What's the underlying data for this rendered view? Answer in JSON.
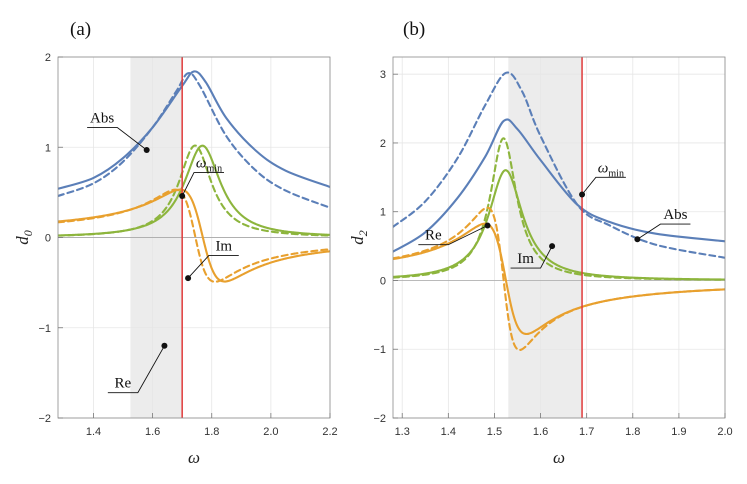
{
  "colors": {
    "abs": "#5b7fb8",
    "im": "#8db53d",
    "re": "#e8a02e",
    "marker": "#e03b3b",
    "shade": "#ececec"
  },
  "chart_data": [
    {
      "type": "line",
      "panel_label": "(a)",
      "xlabel": "ω",
      "ylabel_main": "d",
      "ylabel_sub": "0",
      "xlim": [
        1.28,
        2.2
      ],
      "ylim": [
        -2.0,
        2.0
      ],
      "xticks": [
        1.4,
        1.6,
        1.8,
        2.0,
        2.2
      ],
      "xtick_labels": [
        "1.4",
        "1.6",
        "1.8",
        "2.0",
        "2.2"
      ],
      "yticks": [
        -2,
        -1,
        0,
        1,
        2
      ],
      "ytick_labels": [
        "−2",
        "−1",
        "0",
        "1",
        "2"
      ],
      "shaded_region": [
        1.525,
        1.7
      ],
      "marker_line_x": 1.7,
      "resonance": {
        "w0": 1.77,
        "gamma": 0.15,
        "A": 0.27
      },
      "dashed_resonance": {
        "w0": 1.745,
        "gamma": 0.135,
        "A": 0.24
      },
      "series": [
        {
          "name": "Abs",
          "style": "solid",
          "color": "abs",
          "points": [
            [
              1.28,
              0.54
            ],
            [
              1.4,
              0.66
            ],
            [
              1.5,
              0.88
            ],
            [
              1.6,
              1.22
            ],
            [
              1.7,
              1.68
            ],
            [
              1.74,
              1.84
            ],
            [
              1.78,
              1.72
            ],
            [
              1.85,
              1.32
            ],
            [
              1.95,
              0.96
            ],
            [
              2.05,
              0.74
            ],
            [
              2.2,
              0.56
            ]
          ]
        },
        {
          "name": "Abs",
          "style": "dashed",
          "color": "abs",
          "points": [
            [
              1.28,
              0.46
            ],
            [
              1.4,
              0.6
            ],
            [
              1.5,
              0.84
            ],
            [
              1.6,
              1.22
            ],
            [
              1.68,
              1.62
            ],
            [
              1.72,
              1.82
            ],
            [
              1.76,
              1.68
            ],
            [
              1.85,
              1.12
            ],
            [
              1.95,
              0.74
            ],
            [
              2.05,
              0.52
            ],
            [
              2.2,
              0.33
            ]
          ]
        },
        {
          "name": "Im",
          "style": "solid",
          "color": "im"
        },
        {
          "name": "Im",
          "style": "dashed",
          "color": "im"
        },
        {
          "name": "Re",
          "style": "solid",
          "color": "re"
        },
        {
          "name": "Re",
          "style": "dashed",
          "color": "re"
        }
      ],
      "annotations": [
        {
          "text": "Abs",
          "point": [
            1.58,
            0.97
          ],
          "label": [
            1.43,
            1.22
          ],
          "elbow": [
            1.48,
            1.22
          ],
          "pos": "left"
        },
        {
          "text": "ω",
          "sub": "min",
          "point": [
            1.7,
            0.46
          ],
          "label": [
            1.74,
            0.86
          ],
          "elbow": [
            1.74,
            0.72
          ],
          "pos": "right"
        },
        {
          "text": "Im",
          "point": [
            1.72,
            -0.45
          ],
          "label": [
            1.79,
            -0.05
          ],
          "elbow": [
            1.79,
            -0.2
          ],
          "pos": "right"
        },
        {
          "text": "Re",
          "point": [
            1.64,
            -1.2
          ],
          "label": [
            1.45,
            -1.72
          ],
          "elbow": [
            1.55,
            -1.72
          ],
          "pos": "left"
        }
      ]
    },
    {
      "type": "line",
      "panel_label": "(b)",
      "xlabel": "ω",
      "ylabel_main": "d",
      "ylabel_sub": "2",
      "xlim": [
        1.28,
        2.0
      ],
      "ylim": [
        -2.0,
        3.25
      ],
      "xticks": [
        1.3,
        1.4,
        1.5,
        1.6,
        1.7,
        1.8,
        1.9,
        2.0
      ],
      "xtick_labels": [
        "1.3",
        "1.4",
        "1.5",
        "1.6",
        "1.7",
        "1.8",
        "1.9",
        "2.0"
      ],
      "yticks": [
        -2,
        -1,
        0,
        1,
        2,
        3
      ],
      "ytick_labels": [
        "−2",
        "−1",
        "0",
        "1",
        "2",
        "3"
      ],
      "shaded_region": [
        1.53,
        1.69
      ],
      "marker_line_x": 1.69,
      "resonance": {
        "w0": 1.525,
        "gamma": 0.09,
        "A": 0.22
      },
      "dashed_resonance": {
        "w0": 1.52,
        "gamma": 0.07,
        "A": 0.22
      },
      "series": [
        {
          "name": "Abs",
          "style": "solid",
          "color": "abs",
          "points": [
            [
              1.28,
              0.42
            ],
            [
              1.35,
              0.7
            ],
            [
              1.42,
              1.2
            ],
            [
              1.48,
              1.8
            ],
            [
              1.52,
              2.32
            ],
            [
              1.55,
              2.2
            ],
            [
              1.6,
              1.75
            ],
            [
              1.68,
              1.1
            ],
            [
              1.75,
              0.85
            ],
            [
              1.85,
              0.68
            ],
            [
              2.0,
              0.57
            ]
          ]
        },
        {
          "name": "Abs",
          "style": "dashed",
          "color": "abs",
          "points": [
            [
              1.28,
              0.78
            ],
            [
              1.35,
              1.15
            ],
            [
              1.42,
              1.78
            ],
            [
              1.48,
              2.55
            ],
            [
              1.525,
              3.02
            ],
            [
              1.56,
              2.75
            ],
            [
              1.6,
              2.1
            ],
            [
              1.68,
              1.1
            ],
            [
              1.75,
              0.8
            ],
            [
              1.85,
              0.52
            ],
            [
              2.0,
              0.33
            ]
          ]
        },
        {
          "name": "Im",
          "style": "solid",
          "color": "im"
        },
        {
          "name": "Im",
          "style": "dashed",
          "color": "im"
        },
        {
          "name": "Re",
          "style": "solid",
          "color": "re"
        },
        {
          "name": "Re",
          "style": "dashed",
          "color": "re"
        }
      ],
      "annotations": [
        {
          "text": "ω",
          "sub": "min",
          "point": [
            1.69,
            1.25
          ],
          "label": [
            1.72,
            1.72
          ],
          "elbow": [
            1.72,
            1.5
          ],
          "pos": "right"
        },
        {
          "text": "Abs",
          "point": [
            1.81,
            0.6
          ],
          "label": [
            1.86,
            0.98
          ],
          "elbow": [
            1.86,
            0.82
          ],
          "pos": "right"
        },
        {
          "text": "Im",
          "point": [
            1.625,
            0.5
          ],
          "label": [
            1.595,
            0.18
          ],
          "elbow": [
            1.6,
            0.18
          ],
          "pos": "left"
        },
        {
          "text": "Re",
          "point": [
            1.485,
            0.8
          ],
          "label": [
            1.345,
            0.52
          ],
          "elbow": [
            1.4,
            0.52
          ],
          "pos": "left"
        }
      ]
    }
  ]
}
